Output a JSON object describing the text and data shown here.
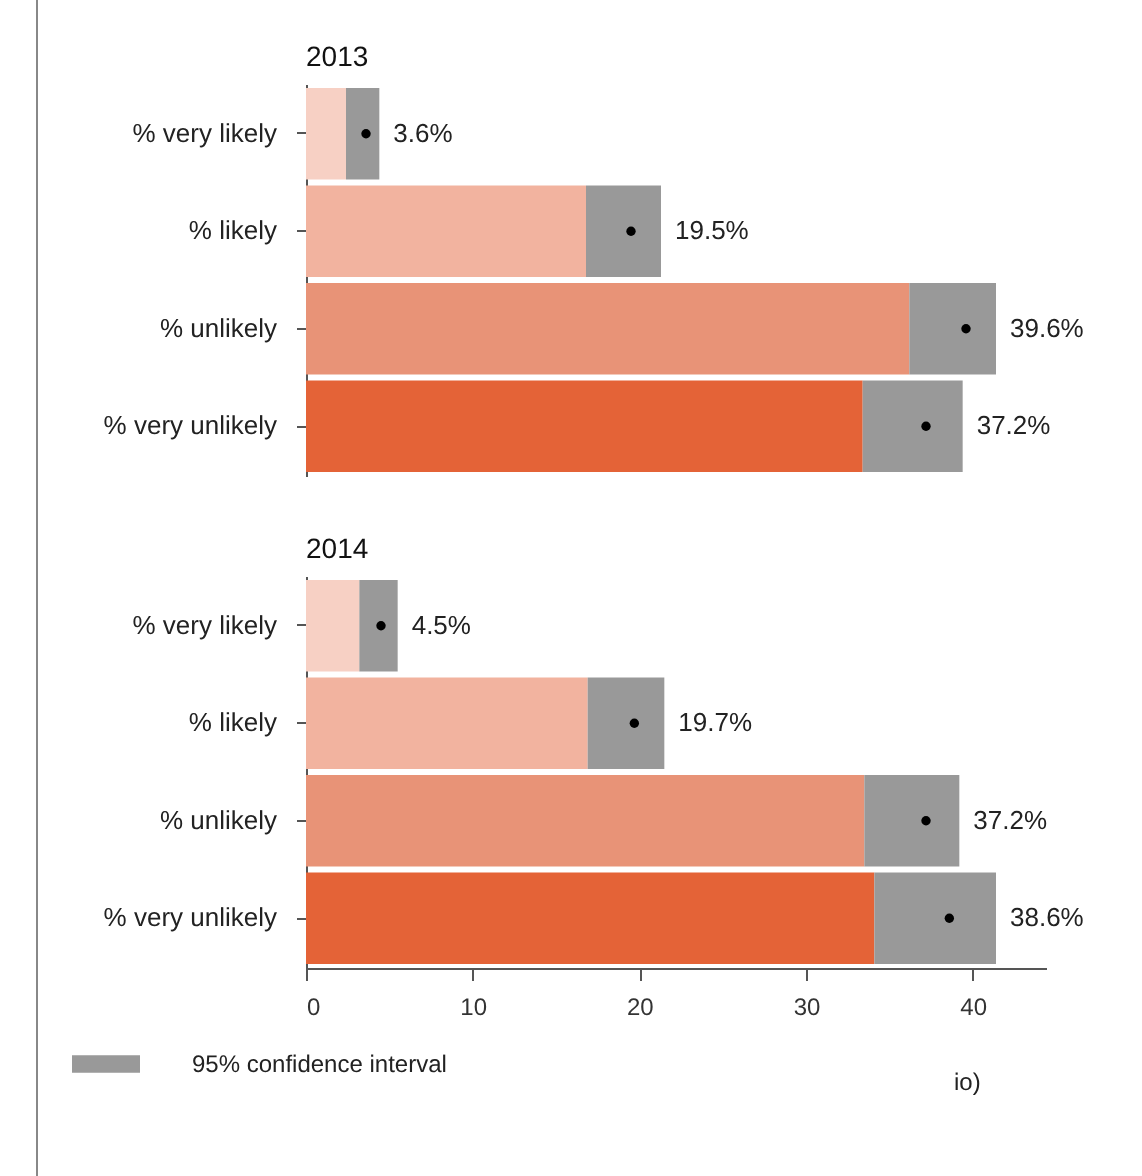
{
  "chart_data": [
    {
      "type": "bar",
      "orientation": "horizontal",
      "stacked": true,
      "marker": "circle",
      "title": "2013",
      "categories": [
        "% very likely",
        "% likely",
        "% unlikely",
        "% very unlikely"
      ],
      "series": [
        {
          "colors": [
            "#f7d0c4",
            "#f2b39f",
            "#e89377",
            "#e46337"
          ],
          "values": [
            2.4,
            16.8,
            36.2,
            33.4
          ]
        },
        {
          "color": "#999999",
          "values": [
            2.0,
            4.5,
            5.2,
            6.0
          ]
        },
        {
          "type": "scatter",
          "color": "#000000",
          "x": [
            "% very likely",
            "% likely",
            "% unlikely",
            "% very unlikely"
          ],
          "values": [
            3.6,
            19.5,
            39.6,
            37.2
          ],
          "value_labels": [
            "3.6%",
            "19.5%",
            "39.6%",
            "37.2%"
          ]
        }
      ],
      "tick_labels": "y"
    },
    {
      "type": "bar",
      "orientation": "horizontal",
      "stacked": true,
      "marker": "circle",
      "title": "2014",
      "categories": [
        "% very likely",
        "% likely",
        "% unlikely",
        "% very unlikely"
      ],
      "series": [
        {
          "colors": [
            "#f7d0c4",
            "#f2b39f",
            "#e89377",
            "#e46337"
          ],
          "values": [
            3.2,
            16.9,
            33.5,
            34.1
          ]
        },
        {
          "name": "95% confidence interval",
          "color": "#999999",
          "values": [
            2.3,
            4.6,
            5.7,
            7.3
          ]
        },
        {
          "type": "scatter",
          "color": "#000000",
          "x": [
            "% very likely",
            "% likely",
            "% unlikely",
            "% very unlikely"
          ],
          "values": [
            4.5,
            19.7,
            37.2,
            38.6
          ],
          "value_labels": [
            "4.5%",
            "19.7%",
            "37.2%",
            "38.6%"
          ]
        }
      ],
      "xlim": [
        0,
        44.4
      ],
      "xticks": [
        0,
        10,
        20,
        30,
        40
      ],
      "legend": "bottom left",
      "annotations": [
        "io)"
      ]
    }
  ]
}
